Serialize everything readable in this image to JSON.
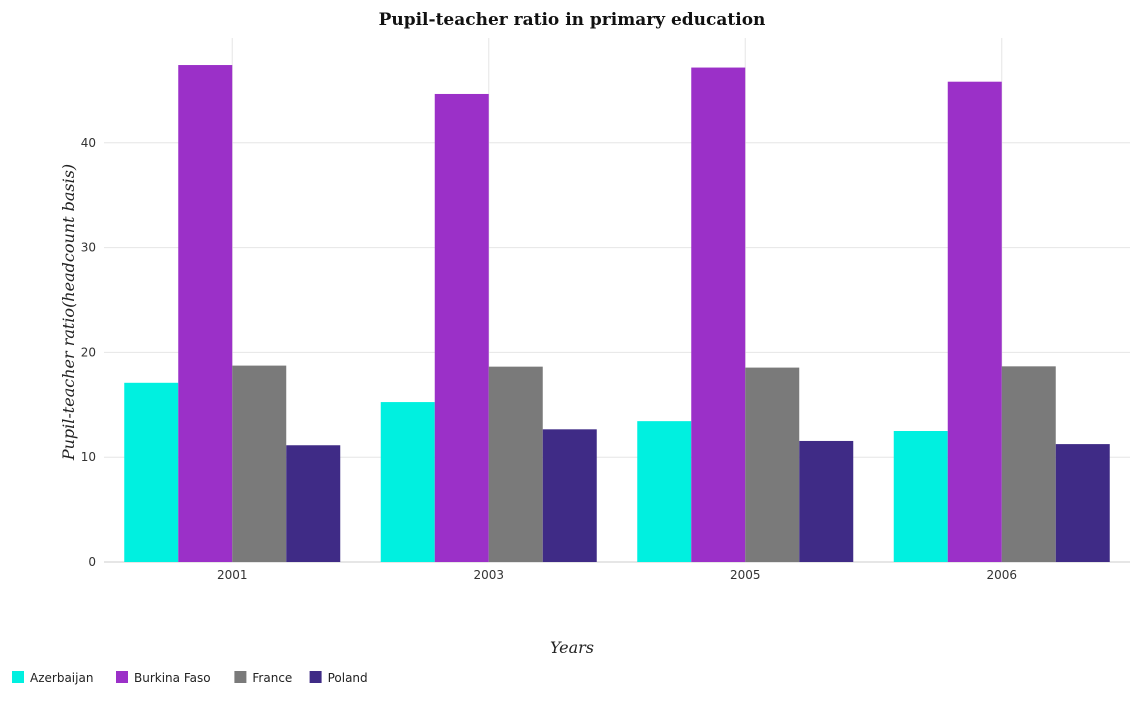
{
  "chart_data": {
    "type": "bar",
    "title": "Pupil-teacher ratio in primary education",
    "xlabel": "Years",
    "ylabel": "Pupil-teacher ratio(headcount basis)",
    "categories": [
      "2001",
      "2003",
      "2005",
      "2006"
    ],
    "ylim": [
      0,
      50
    ],
    "yticks": [
      0,
      10,
      20,
      30,
      40
    ],
    "grid": true,
    "legend_position": "bottom-left",
    "series": [
      {
        "name": "Azerbaijan",
        "color": "#00f0e0",
        "values": [
          17.1,
          15.26,
          13.44,
          12.5
        ]
      },
      {
        "name": "Burkina Faso",
        "color": "#9b30c8",
        "values": [
          47.42,
          44.66,
          47.18,
          45.83
        ]
      },
      {
        "name": "France",
        "color": "#7a7a7a",
        "values": [
          18.74,
          18.64,
          18.55,
          18.67
        ]
      },
      {
        "name": "Poland",
        "color": "#3f2b86",
        "values": [
          11.14,
          12.66,
          11.55,
          11.25
        ]
      }
    ]
  }
}
